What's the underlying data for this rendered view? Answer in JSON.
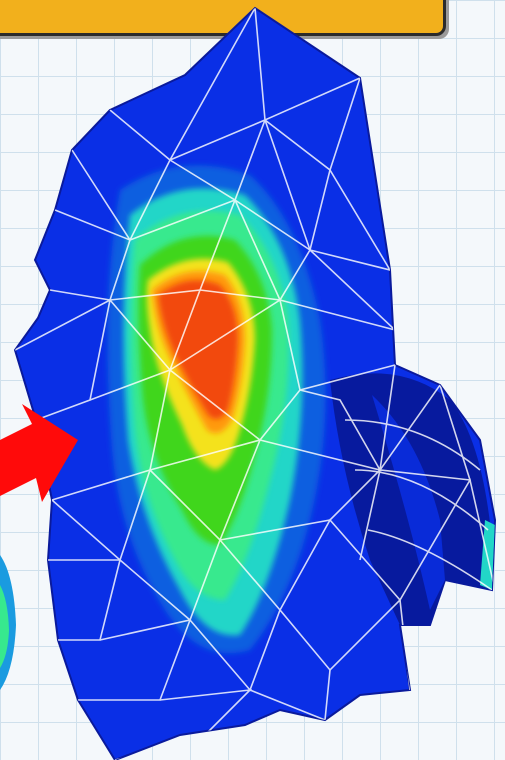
{
  "figure": {
    "banner_color": "#f2b01c",
    "arrow_color": "#ff0a0a",
    "colormap": [
      "#0a1fd0",
      "#0b5fe0",
      "#22d6c8",
      "#37e98e",
      "#3fd61f",
      "#f4e21a",
      "#ff9a10",
      "#f24a10"
    ],
    "objects": [
      "stress-contour-mesh",
      "pointer-arrow",
      "adjacent-part-fragment"
    ]
  }
}
